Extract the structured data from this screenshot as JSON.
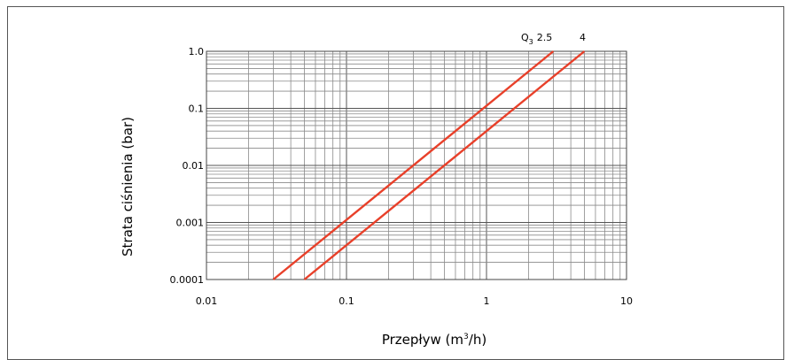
{
  "chart_data": {
    "type": "line",
    "x_scale": "log",
    "y_scale": "log",
    "xlim": [
      0.01,
      10
    ],
    "ylim": [
      0.0001,
      1.0
    ],
    "x_ticks": [
      0.01,
      0.1,
      1,
      10
    ],
    "x_tick_labels": [
      "0.01",
      "0.1",
      "1",
      "10"
    ],
    "y_ticks": [
      1.0,
      0.1,
      0.01,
      0.001,
      0.0001
    ],
    "y_tick_labels": [
      "1.0",
      "0.1",
      "0.01",
      "0.001",
      "0.0001"
    ],
    "xlabel": "Przepływ (m³/h)",
    "xlabel_base": "Przepływ (m",
    "xlabel_sup": "3",
    "xlabel_tail": "/h)",
    "ylabel": "Strata ciśnienia (bar)",
    "grid": true,
    "line_color": "#e8402a",
    "series": [
      {
        "name": "Q3 2.5",
        "label_prefix": "Q",
        "label_sub": "3",
        "label_value": "2.5",
        "x": [
          0.03,
          3.0
        ],
        "y": [
          0.0001,
          1.0
        ]
      },
      {
        "name": "4",
        "label_value": "4",
        "x": [
          0.05,
          5.0
        ],
        "y": [
          0.0001,
          1.0
        ]
      }
    ]
  }
}
